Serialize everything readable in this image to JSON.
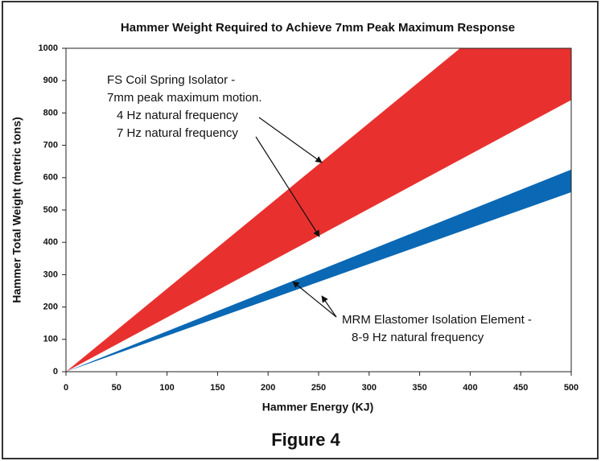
{
  "chart_data": {
    "type": "band",
    "title": "Hammer Weight Required to Achieve 7mm Peak Maximum Response",
    "x_label": "Hammer Energy (KJ)",
    "y_label": "Hammer Total Weight (metric tons)",
    "caption": "Figure 4",
    "x": [
      0,
      500
    ],
    "series": [
      {
        "color": "#e8312f",
        "upper": [
          0,
          1282
        ],
        "lower": [
          0,
          840
        ]
      },
      {
        "color": "#0a68b4",
        "upper": [
          0,
          625
        ],
        "lower": [
          0,
          555
        ]
      }
    ],
    "xlim": [
      0,
      500
    ],
    "xticks": [
      0,
      50,
      100,
      150,
      200,
      250,
      300,
      350,
      400,
      450,
      500
    ],
    "ylim": [
      0,
      1000
    ],
    "yticks": [
      0,
      100,
      200,
      300,
      400,
      500,
      600,
      700,
      800,
      900,
      1000
    ],
    "annotations": [
      {
        "lines": [
          "FS Coil Spring Isolator -",
          "7mm peak maximum motion.",
          "4 Hz natural frequency",
          "7 Hz natural frequency"
        ]
      },
      {
        "lines": [
          "MRM Elastomer Isolation Element -",
          "8-9 Hz natural frequency"
        ]
      }
    ]
  }
}
